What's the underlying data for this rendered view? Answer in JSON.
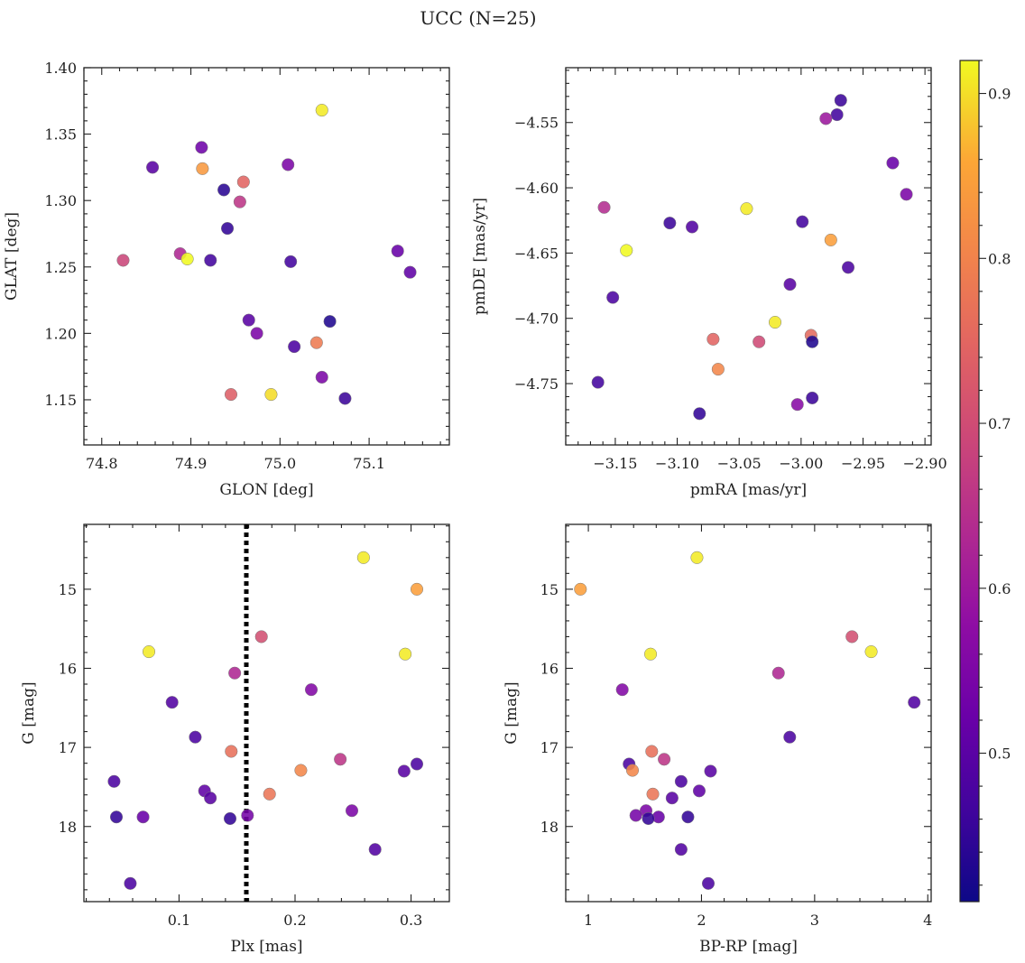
{
  "figure": {
    "title": "UCC (N=25)"
  },
  "colorbar": {
    "colormap": "plasma",
    "range": [
      0.41,
      0.92
    ],
    "ticks": [
      0.5,
      0.6,
      0.7,
      0.8,
      0.9
    ],
    "tick_labels": [
      "0.5",
      "0.6",
      "0.7",
      "0.8",
      "0.9"
    ]
  },
  "chart_data": [
    {
      "id": "glon-glat",
      "type": "scatter",
      "xlabel": "GLON [deg]",
      "ylabel": "GLAT [deg]",
      "xlim": [
        74.78,
        75.19
      ],
      "ylim": [
        1.116,
        1.4
      ],
      "xticks": [
        74.8,
        74.9,
        75.0,
        75.1
      ],
      "xtick_labels": [
        "74.8",
        "74.9",
        "75.0",
        "75.1"
      ],
      "yticks": [
        1.15,
        1.2,
        1.25,
        1.3,
        1.35,
        1.4
      ],
      "ytick_labels": [
        "1.15",
        "1.20",
        "1.25",
        "1.30",
        "1.35",
        "1.40"
      ],
      "y_inverted": false,
      "points": [
        {
          "x": 75.047,
          "y": 1.368,
          "c": 0.91
        },
        {
          "x": 74.857,
          "y": 1.325,
          "c": 0.5
        },
        {
          "x": 74.912,
          "y": 1.34,
          "c": 0.53
        },
        {
          "x": 74.913,
          "y": 1.324,
          "c": 0.84
        },
        {
          "x": 75.009,
          "y": 1.327,
          "c": 0.55
        },
        {
          "x": 74.959,
          "y": 1.314,
          "c": 0.75
        },
        {
          "x": 74.937,
          "y": 1.308,
          "c": 0.44
        },
        {
          "x": 74.955,
          "y": 1.299,
          "c": 0.66
        },
        {
          "x": 74.941,
          "y": 1.279,
          "c": 0.45
        },
        {
          "x": 74.824,
          "y": 1.255,
          "c": 0.69
        },
        {
          "x": 74.888,
          "y": 1.26,
          "c": 0.63
        },
        {
          "x": 74.896,
          "y": 1.256,
          "c": 0.92
        },
        {
          "x": 74.922,
          "y": 1.255,
          "c": 0.47
        },
        {
          "x": 75.012,
          "y": 1.254,
          "c": 0.47
        },
        {
          "x": 75.132,
          "y": 1.262,
          "c": 0.52
        },
        {
          "x": 75.146,
          "y": 1.246,
          "c": 0.51
        },
        {
          "x": 74.965,
          "y": 1.21,
          "c": 0.5
        },
        {
          "x": 74.974,
          "y": 1.2,
          "c": 0.55
        },
        {
          "x": 75.056,
          "y": 1.209,
          "c": 0.43
        },
        {
          "x": 75.016,
          "y": 1.19,
          "c": 0.48
        },
        {
          "x": 75.041,
          "y": 1.193,
          "c": 0.79
        },
        {
          "x": 75.047,
          "y": 1.167,
          "c": 0.55
        },
        {
          "x": 74.945,
          "y": 1.154,
          "c": 0.74
        },
        {
          "x": 74.99,
          "y": 1.154,
          "c": 0.9
        },
        {
          "x": 75.073,
          "y": 1.151,
          "c": 0.46
        }
      ]
    },
    {
      "id": "pmra-pmde",
      "type": "scatter",
      "xlabel": "pmRA [mas/yr]",
      "ylabel": "pmDE [mas/yr]",
      "xlim": [
        -3.19,
        -2.895
      ],
      "ylim": [
        -4.797,
        -4.508
      ],
      "xticks": [
        -3.15,
        -3.1,
        -3.05,
        -3.0,
        -2.95,
        -2.9
      ],
      "xtick_labels": [
        "−3.15",
        "−3.10",
        "−3.05",
        "−3.00",
        "−2.95",
        "−2.90"
      ],
      "yticks": [
        -4.75,
        -4.7,
        -4.65,
        -4.6,
        -4.55
      ],
      "ytick_labels": [
        "−4.75",
        "−4.70",
        "−4.65",
        "−4.60",
        "−4.55"
      ],
      "y_inverted": false,
      "points": [
        {
          "x": -2.968,
          "y": -4.533,
          "c": 0.46
        },
        {
          "x": -2.971,
          "y": -4.544,
          "c": 0.47
        },
        {
          "x": -2.98,
          "y": -4.547,
          "c": 0.6
        },
        {
          "x": -2.926,
          "y": -4.581,
          "c": 0.52
        },
        {
          "x": -2.915,
          "y": -4.605,
          "c": 0.55
        },
        {
          "x": -3.159,
          "y": -4.615,
          "c": 0.64
        },
        {
          "x": -3.044,
          "y": -4.616,
          "c": 0.91
        },
        {
          "x": -3.106,
          "y": -4.627,
          "c": 0.46
        },
        {
          "x": -3.088,
          "y": -4.63,
          "c": 0.49
        },
        {
          "x": -2.999,
          "y": -4.626,
          "c": 0.47
        },
        {
          "x": -3.141,
          "y": -4.648,
          "c": 0.92
        },
        {
          "x": -2.976,
          "y": -4.64,
          "c": 0.85
        },
        {
          "x": -2.962,
          "y": -4.661,
          "c": 0.48
        },
        {
          "x": -3.152,
          "y": -4.684,
          "c": 0.48
        },
        {
          "x": -3.009,
          "y": -4.674,
          "c": 0.5
        },
        {
          "x": -3.021,
          "y": -4.703,
          "c": 0.91
        },
        {
          "x": -3.071,
          "y": -4.716,
          "c": 0.75
        },
        {
          "x": -3.034,
          "y": -4.718,
          "c": 0.7
        },
        {
          "x": -2.992,
          "y": -4.713,
          "c": 0.76
        },
        {
          "x": -2.991,
          "y": -4.718,
          "c": 0.43
        },
        {
          "x": -3.067,
          "y": -4.739,
          "c": 0.81
        },
        {
          "x": -3.164,
          "y": -4.749,
          "c": 0.47
        },
        {
          "x": -2.991,
          "y": -4.761,
          "c": 0.46
        },
        {
          "x": -3.003,
          "y": -4.766,
          "c": 0.57
        },
        {
          "x": -3.082,
          "y": -4.773,
          "c": 0.45
        }
      ]
    },
    {
      "id": "plx-g",
      "type": "scatter",
      "xlabel": "Plx [mas]",
      "ylabel": "G [mag]",
      "xlim": [
        0.018,
        0.333
      ],
      "ylim": [
        14.18,
        18.95
      ],
      "xticks": [
        0.1,
        0.2,
        0.3
      ],
      "xtick_labels": [
        "0.1",
        "0.2",
        "0.3"
      ],
      "yticks": [
        15,
        16,
        17,
        18
      ],
      "ytick_labels": [
        "15",
        "16",
        "17",
        "18"
      ],
      "y_inverted": true,
      "vline": {
        "x": 0.158,
        "style": "dotted"
      },
      "points": [
        {
          "x": 0.259,
          "y": 14.6,
          "c": 0.91
        },
        {
          "x": 0.305,
          "y": 15.0,
          "c": 0.85
        },
        {
          "x": 0.171,
          "y": 15.6,
          "c": 0.71
        },
        {
          "x": 0.074,
          "y": 15.79,
          "c": 0.91
        },
        {
          "x": 0.295,
          "y": 15.82,
          "c": 0.91
        },
        {
          "x": 0.148,
          "y": 16.06,
          "c": 0.63
        },
        {
          "x": 0.214,
          "y": 16.27,
          "c": 0.56
        },
        {
          "x": 0.094,
          "y": 16.43,
          "c": 0.49
        },
        {
          "x": 0.114,
          "y": 16.87,
          "c": 0.48
        },
        {
          "x": 0.145,
          "y": 17.05,
          "c": 0.77
        },
        {
          "x": 0.239,
          "y": 17.15,
          "c": 0.66
        },
        {
          "x": 0.305,
          "y": 17.21,
          "c": 0.48
        },
        {
          "x": 0.205,
          "y": 17.29,
          "c": 0.81
        },
        {
          "x": 0.294,
          "y": 17.3,
          "c": 0.5
        },
        {
          "x": 0.044,
          "y": 17.43,
          "c": 0.48
        },
        {
          "x": 0.122,
          "y": 17.55,
          "c": 0.51
        },
        {
          "x": 0.178,
          "y": 17.59,
          "c": 0.78
        },
        {
          "x": 0.127,
          "y": 17.64,
          "c": 0.5
        },
        {
          "x": 0.249,
          "y": 17.8,
          "c": 0.55
        },
        {
          "x": 0.046,
          "y": 17.88,
          "c": 0.45
        },
        {
          "x": 0.069,
          "y": 17.88,
          "c": 0.52
        },
        {
          "x": 0.144,
          "y": 17.9,
          "c": 0.45
        },
        {
          "x": 0.159,
          "y": 17.86,
          "c": 0.54
        },
        {
          "x": 0.269,
          "y": 18.29,
          "c": 0.49
        },
        {
          "x": 0.058,
          "y": 18.72,
          "c": 0.48
        }
      ]
    },
    {
      "id": "bprp-g",
      "type": "scatter",
      "xlabel": "BP-RP [mag]",
      "ylabel": "G [mag]",
      "xlim": [
        0.8,
        4.03
      ],
      "ylim": [
        14.18,
        18.95
      ],
      "xticks": [
        1,
        2,
        3,
        4
      ],
      "xtick_labels": [
        "1",
        "2",
        "3",
        "4"
      ],
      "yticks": [
        15,
        16,
        17,
        18
      ],
      "ytick_labels": [
        "15",
        "16",
        "17",
        "18"
      ],
      "y_inverted": true,
      "points": [
        {
          "x": 1.96,
          "y": 14.6,
          "c": 0.91
        },
        {
          "x": 0.93,
          "y": 15.0,
          "c": 0.85
        },
        {
          "x": 3.33,
          "y": 15.6,
          "c": 0.71
        },
        {
          "x": 3.5,
          "y": 15.79,
          "c": 0.91
        },
        {
          "x": 1.55,
          "y": 15.82,
          "c": 0.91
        },
        {
          "x": 2.68,
          "y": 16.06,
          "c": 0.63
        },
        {
          "x": 1.3,
          "y": 16.27,
          "c": 0.56
        },
        {
          "x": 3.88,
          "y": 16.43,
          "c": 0.49
        },
        {
          "x": 2.78,
          "y": 16.87,
          "c": 0.48
        },
        {
          "x": 1.56,
          "y": 17.05,
          "c": 0.77
        },
        {
          "x": 1.67,
          "y": 17.15,
          "c": 0.66
        },
        {
          "x": 1.36,
          "y": 17.21,
          "c": 0.48
        },
        {
          "x": 1.39,
          "y": 17.29,
          "c": 0.81
        },
        {
          "x": 2.08,
          "y": 17.3,
          "c": 0.5
        },
        {
          "x": 1.82,
          "y": 17.43,
          "c": 0.48
        },
        {
          "x": 1.98,
          "y": 17.55,
          "c": 0.51
        },
        {
          "x": 1.57,
          "y": 17.59,
          "c": 0.78
        },
        {
          "x": 1.74,
          "y": 17.64,
          "c": 0.5
        },
        {
          "x": 1.51,
          "y": 17.8,
          "c": 0.55
        },
        {
          "x": 1.88,
          "y": 17.88,
          "c": 0.45
        },
        {
          "x": 1.62,
          "y": 17.88,
          "c": 0.52
        },
        {
          "x": 1.53,
          "y": 17.9,
          "c": 0.45
        },
        {
          "x": 1.42,
          "y": 17.86,
          "c": 0.54
        },
        {
          "x": 1.82,
          "y": 18.29,
          "c": 0.49
        },
        {
          "x": 2.06,
          "y": 18.72,
          "c": 0.48
        }
      ]
    }
  ]
}
